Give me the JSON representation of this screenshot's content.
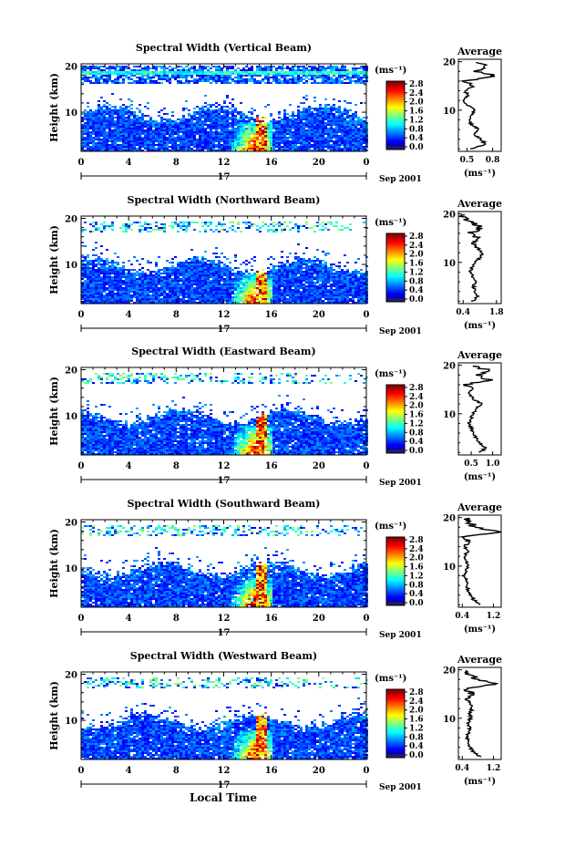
{
  "figure": {
    "xlabel": "Local Time",
    "date_label": "Sep 2001",
    "day_label": "17",
    "ylabel": "Height (km)",
    "colorbar_unit": "(ms⁻¹)",
    "colorbar_ticks": [
      "0.0",
      "0.4",
      "0.8",
      "1.2",
      "1.6",
      "2.0",
      "2.4",
      "2.8"
    ],
    "avg_title": "Average",
    "avg_xlabel": "(ms⁻¹)"
  },
  "chart_data": [
    {
      "type": "heatmap",
      "title": "Spectral Width (Vertical Beam)",
      "x_ticks": [
        "0",
        "4",
        "8",
        "12",
        "16",
        "20",
        "0"
      ],
      "y_ticks": [
        "10",
        "20"
      ],
      "xlim": [
        0,
        24
      ],
      "ylim": [
        1.5,
        20.5
      ],
      "color_range": [
        0.0,
        2.8
      ],
      "avg_profile": {
        "xticks": [
          "0.5",
          "0.8"
        ],
        "xlim": [
          0.4,
          0.9
        ],
        "profile": [
          [
            2,
            0.55
          ],
          [
            3,
            0.72
          ],
          [
            4,
            0.66
          ],
          [
            5,
            0.58
          ],
          [
            6,
            0.63
          ],
          [
            7,
            0.56
          ],
          [
            8,
            0.52
          ],
          [
            9,
            0.55
          ],
          [
            10,
            0.6
          ],
          [
            11,
            0.5
          ],
          [
            12,
            0.46
          ],
          [
            13,
            0.52
          ],
          [
            14,
            0.47
          ],
          [
            15,
            0.58
          ],
          [
            16,
            0.5
          ],
          [
            17,
            0.85
          ],
          [
            18,
            0.62
          ],
          [
            19,
            0.74
          ],
          [
            20,
            0.6
          ]
        ]
      }
    },
    {
      "type": "heatmap",
      "title": "Spectral Width (Northward Beam)",
      "x_ticks": [
        "0",
        "4",
        "8",
        "12",
        "16",
        "20",
        "0"
      ],
      "y_ticks": [
        "10",
        "20"
      ],
      "xlim": [
        0,
        24
      ],
      "ylim": [
        1.5,
        20.5
      ],
      "color_range": [
        0.0,
        2.8
      ],
      "avg_profile": {
        "xticks": [
          "0.4",
          "1.8"
        ],
        "xlim": [
          0.2,
          2.0
        ],
        "profile": [
          [
            2,
            0.8
          ],
          [
            3,
            1.0
          ],
          [
            4,
            0.9
          ],
          [
            5,
            0.85
          ],
          [
            6,
            0.9
          ],
          [
            7,
            0.8
          ],
          [
            8,
            0.7
          ],
          [
            9,
            0.75
          ],
          [
            10,
            0.9
          ],
          [
            11,
            1.1
          ],
          [
            12,
            1.2
          ],
          [
            13,
            1.0
          ],
          [
            14,
            0.8
          ],
          [
            15,
            1.1
          ],
          [
            16,
            0.6
          ],
          [
            17,
            1.2
          ],
          [
            18,
            0.9
          ],
          [
            19,
            0.5
          ],
          [
            20,
            0.4
          ]
        ]
      }
    },
    {
      "type": "heatmap",
      "title": "Spectral Width (Eastward Beam)",
      "x_ticks": [
        "0",
        "4",
        "8",
        "12",
        "16",
        "20",
        "0"
      ],
      "y_ticks": [
        "10",
        "20"
      ],
      "xlim": [
        0,
        24
      ],
      "ylim": [
        1.5,
        20.5
      ],
      "color_range": [
        0.0,
        2.8
      ],
      "avg_profile": {
        "xticks": [
          "0.5",
          "1.0"
        ],
        "xlim": [
          0.2,
          1.2
        ],
        "profile": [
          [
            2,
            0.7
          ],
          [
            3,
            0.85
          ],
          [
            4,
            0.7
          ],
          [
            5,
            0.6
          ],
          [
            6,
            0.55
          ],
          [
            7,
            0.5
          ],
          [
            8,
            0.45
          ],
          [
            9,
            0.5
          ],
          [
            10,
            0.55
          ],
          [
            11,
            0.6
          ],
          [
            12,
            0.75
          ],
          [
            13,
            0.55
          ],
          [
            14,
            0.45
          ],
          [
            15,
            0.5
          ],
          [
            16,
            0.4
          ],
          [
            17,
            0.9
          ],
          [
            18,
            0.7
          ],
          [
            19,
            0.95
          ],
          [
            20,
            0.4
          ]
        ]
      }
    },
    {
      "type": "heatmap",
      "title": "Spectral Width (Southward Beam)",
      "x_ticks": [
        "0",
        "4",
        "8",
        "12",
        "16",
        "20",
        "0"
      ],
      "y_ticks": [
        "10",
        "20"
      ],
      "xlim": [
        0,
        24
      ],
      "ylim": [
        1.5,
        20.5
      ],
      "color_range": [
        0.0,
        2.8
      ],
      "avg_profile": {
        "xticks": [
          "0.4",
          "1.2"
        ],
        "xlim": [
          0.3,
          1.4
        ],
        "profile": [
          [
            2,
            0.85
          ],
          [
            3,
            0.7
          ],
          [
            4,
            0.6
          ],
          [
            5,
            0.55
          ],
          [
            6,
            0.52
          ],
          [
            7,
            0.5
          ],
          [
            8,
            0.45
          ],
          [
            9,
            0.5
          ],
          [
            10,
            0.55
          ],
          [
            11,
            0.5
          ],
          [
            12,
            0.45
          ],
          [
            13,
            0.55
          ],
          [
            14,
            0.45
          ],
          [
            15,
            0.6
          ],
          [
            16,
            0.4
          ],
          [
            17,
            1.3
          ],
          [
            18,
            0.7
          ],
          [
            19,
            0.6
          ],
          [
            20,
            0.5
          ]
        ]
      }
    },
    {
      "type": "heatmap",
      "title": "Spectral Width (Westward Beam)",
      "x_ticks": [
        "0",
        "4",
        "8",
        "12",
        "16",
        "20",
        "0"
      ],
      "y_ticks": [
        "10",
        "20"
      ],
      "xlim": [
        0,
        24
      ],
      "ylim": [
        1.5,
        20.5
      ],
      "color_range": [
        0.0,
        2.8
      ],
      "avg_profile": {
        "xticks": [
          "0.4",
          "1.2"
        ],
        "xlim": [
          0.3,
          1.4
        ],
        "profile": [
          [
            2,
            0.85
          ],
          [
            3,
            0.7
          ],
          [
            4,
            0.6
          ],
          [
            5,
            0.55
          ],
          [
            6,
            0.52
          ],
          [
            7,
            0.55
          ],
          [
            8,
            0.6
          ],
          [
            9,
            0.55
          ],
          [
            10,
            0.62
          ],
          [
            11,
            0.6
          ],
          [
            12,
            0.65
          ],
          [
            13,
            0.6
          ],
          [
            14,
            0.5
          ],
          [
            15,
            0.7
          ],
          [
            16,
            0.45
          ],
          [
            17,
            1.25
          ],
          [
            18,
            0.8
          ],
          [
            19,
            0.6
          ],
          [
            20,
            0.5
          ]
        ]
      }
    }
  ]
}
